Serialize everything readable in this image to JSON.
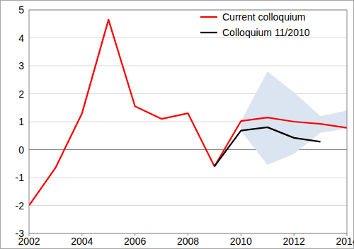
{
  "chart_data": {
    "type": "line",
    "x": [
      2002,
      2003,
      2004,
      2005,
      2006,
      2007,
      2008,
      2009,
      2010,
      2011,
      2012,
      2013,
      2014
    ],
    "series": [
      {
        "type": "band",
        "color": "#dbe5f1",
        "values": [
          null,
          null,
          null,
          null,
          null,
          null,
          null,
          null,
          1.02,
          2.8,
          2.05,
          1.2,
          1.4
        ],
        "lower": [
          null,
          null,
          null,
          null,
          null,
          null,
          null,
          null,
          0.68,
          -0.55,
          -0.15,
          0.6,
          0.75
        ]
      },
      {
        "name": "Current colloquium",
        "color": "#ff0000",
        "values": [
          -2.0,
          -0.65,
          1.3,
          4.65,
          1.55,
          1.1,
          1.3,
          -0.6,
          1.02,
          1.15,
          1.0,
          0.92,
          0.78
        ]
      },
      {
        "name": "Colloquium 11/2010",
        "color": "#000000",
        "values": [
          null,
          null,
          null,
          null,
          null,
          null,
          null,
          -0.6,
          0.68,
          0.8,
          0.42,
          0.28,
          null
        ]
      }
    ],
    "xlim": [
      2002,
      2014
    ],
    "xticks": [
      2002,
      2004,
      2006,
      2008,
      2010,
      2012,
      2014
    ],
    "ylim": [
      -3,
      5
    ],
    "yticks": [
      -3,
      -2,
      -1,
      0,
      1,
      2,
      3,
      4,
      5
    ],
    "grid": true,
    "legend": "upper-right"
  }
}
